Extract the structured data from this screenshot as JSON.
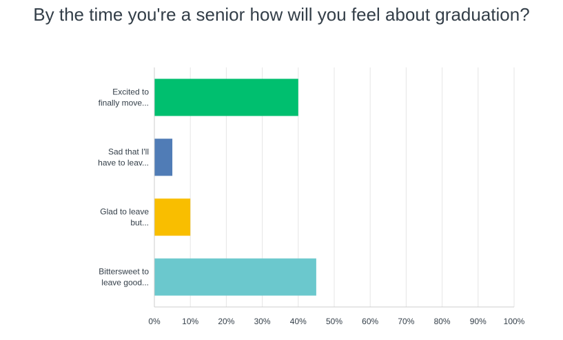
{
  "chart_data": {
    "type": "bar",
    "orientation": "horizontal",
    "title": "By the time you're a senior how will you feel about graduation?",
    "categories": [
      [
        "Excited to",
        "finally move..."
      ],
      [
        "Sad that I'll",
        "have to leav..."
      ],
      [
        "Glad to leave",
        "but..."
      ],
      [
        "Bittersweet to",
        "leave good..."
      ]
    ],
    "values": [
      40,
      5,
      10,
      45
    ],
    "colors": [
      "#00bf6f",
      "#507cb6",
      "#f9be00",
      "#6bc8cd"
    ],
    "xlim": [
      0,
      100
    ],
    "xticks": [
      "0%",
      "10%",
      "20%",
      "30%",
      "40%",
      "50%",
      "60%",
      "70%",
      "80%",
      "90%",
      "100%"
    ],
    "xlabel": "",
    "ylabel": "",
    "grid": true,
    "gridColor": "#e5e5e5",
    "axisColor": "#cccccc"
  }
}
